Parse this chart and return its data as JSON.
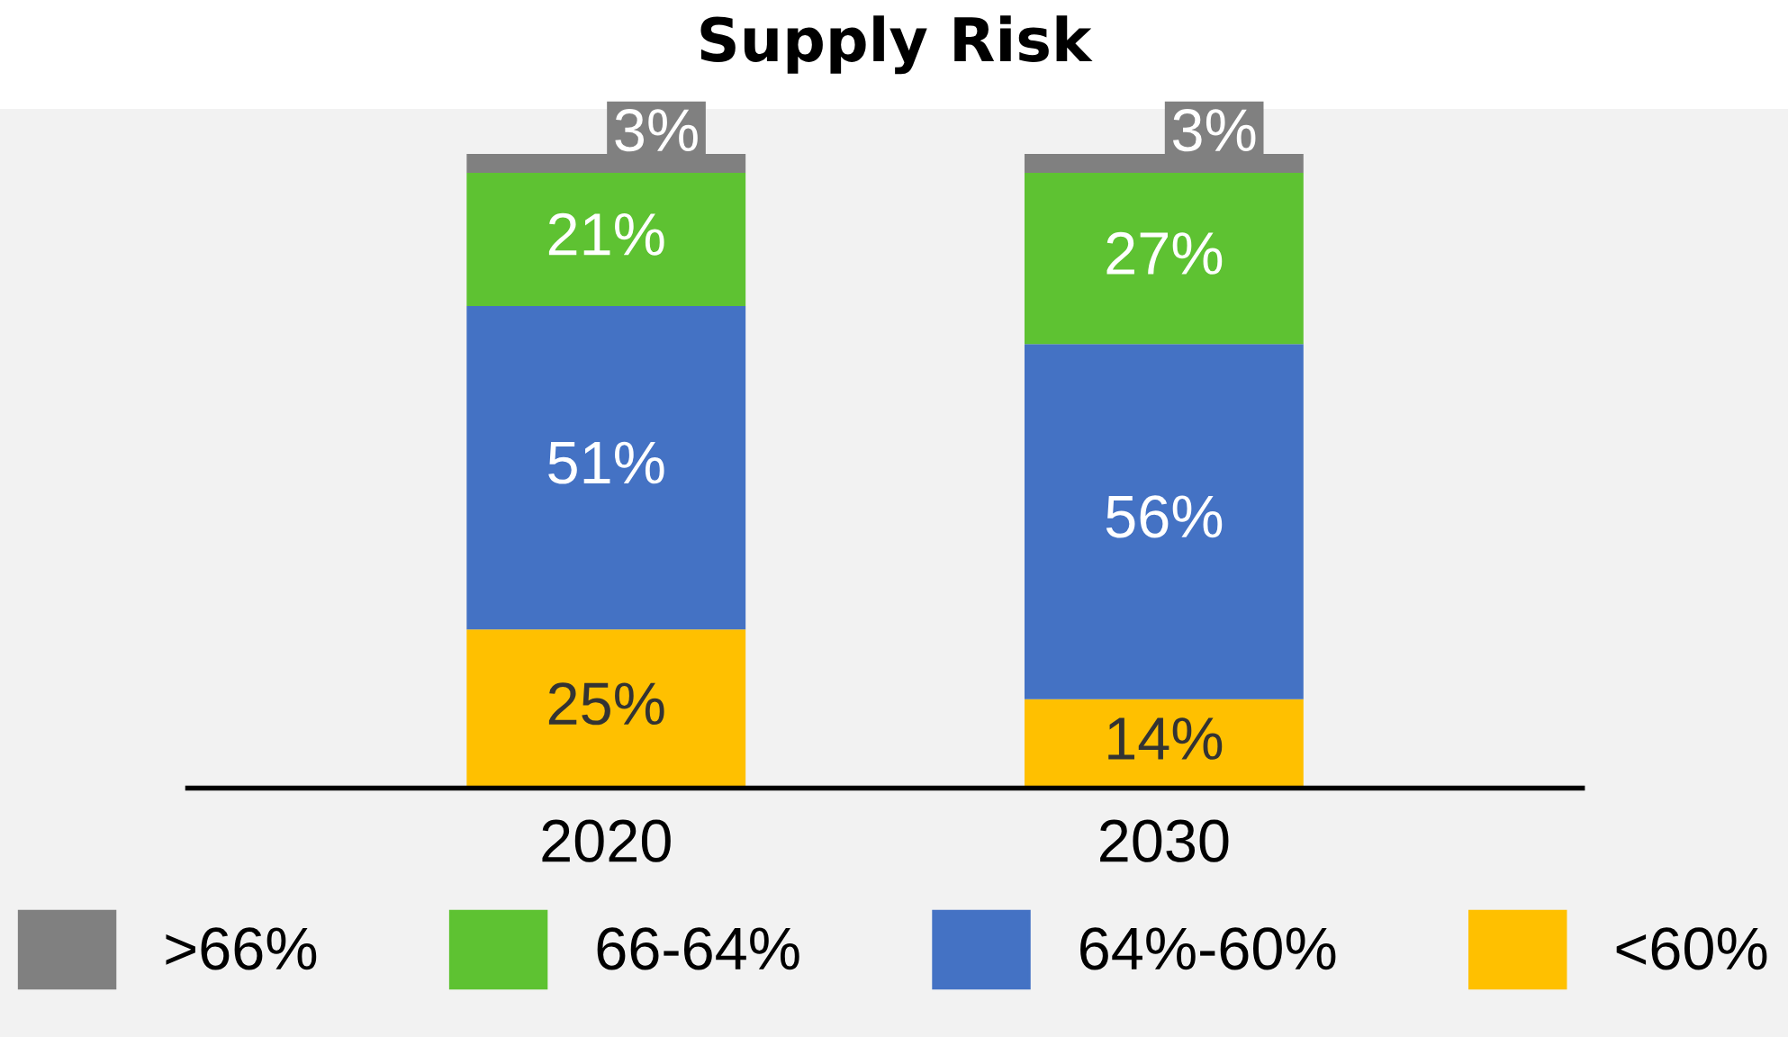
{
  "chart_data": {
    "type": "bar",
    "title": "Supply Risk",
    "stacked": true,
    "categories": [
      "2020",
      "2030"
    ],
    "tick_labels": "x",
    "legend": "bottom",
    "grid": false,
    "series": [
      {
        "name": "<60%",
        "color": "#ffc000",
        "values": [
          25,
          14
        ],
        "value_labels": [
          "25%",
          "14%"
        ]
      },
      {
        "name": "64%-60%",
        "color": "#4472c4",
        "values": [
          51,
          56
        ],
        "value_labels": [
          "51%",
          "56%"
        ]
      },
      {
        "name": "66-64%",
        "color": "#5ec232",
        "values": [
          21,
          27
        ],
        "value_labels": [
          "21%",
          "27%"
        ]
      },
      {
        "name": ">66%",
        "color": "#808080",
        "values": [
          3,
          3
        ],
        "value_labels": [
          "3%",
          "3%"
        ]
      }
    ]
  }
}
